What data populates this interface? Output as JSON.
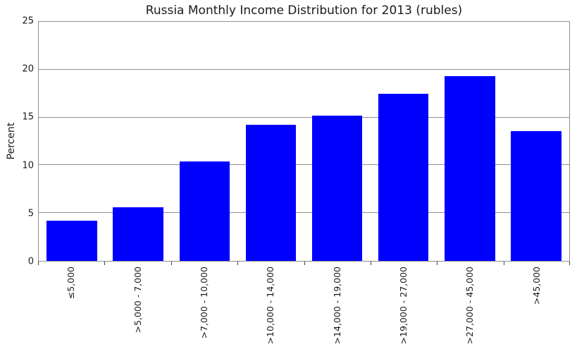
{
  "chart_data": {
    "type": "bar",
    "title": "Russia Monthly Income Distribution for 2013 (rubles)",
    "xlabel": "",
    "ylabel": "Percent",
    "categories": [
      "≤5,000",
      ">5,000 - 7,000",
      ">7,000 - 10,000",
      ">10,000 - 14,000",
      ">14,000 - 19,000",
      ">19,000 - 27,000",
      ">27,000 - 45,000",
      ">45,000"
    ],
    "values": [
      4.2,
      5.6,
      10.4,
      14.2,
      15.2,
      17.5,
      19.3,
      13.6
    ],
    "ylim": [
      0,
      25
    ],
    "yticks": [
      0,
      5,
      10,
      15,
      20,
      25
    ],
    "grid": true,
    "legend": "none",
    "x_label_rotation_deg": 90,
    "colors": {
      "bar": "#0000ff",
      "grid": "#8e8e8e",
      "spine": "#8e8e8e",
      "tick": "#444444",
      "text": "#1a1a1a",
      "background": "#ffffff"
    }
  }
}
